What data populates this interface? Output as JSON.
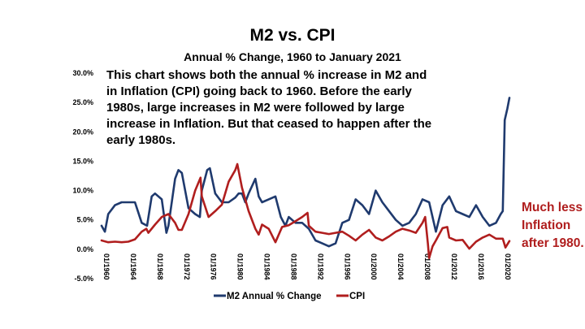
{
  "chart_data": {
    "type": "line",
    "title": "M2 vs. CPI",
    "subtitle": "Annual % Change, 1960 to January 2021",
    "annotation": "This chart shows both the annual % increase in M2 and in Inflation (CPI) going back to 1960.  Before the early 1980s, large increases in M2 were followed by large increase in Inflation.  But that ceased to happen after the early 1980s.",
    "side_note": "Much less Inflation after 1980.",
    "ylim": [
      -5,
      30
    ],
    "xlim": [
      1960,
      2021
    ],
    "y_ticks": [
      30,
      25,
      20,
      15,
      10,
      5,
      0,
      -5
    ],
    "y_tick_labels": [
      "30.0%",
      "25.0%",
      "20.0%",
      "15.0%",
      "10.0%",
      "5.0%",
      "0.0%",
      "-5.0%"
    ],
    "x_ticks": [
      1960,
      1964,
      1968,
      1972,
      1976,
      1980,
      1984,
      1988,
      1992,
      1996,
      2000,
      2004,
      2008,
      2012,
      2016,
      2020
    ],
    "x_tick_labels": [
      "01/1960",
      "01/1964",
      "01/1968",
      "01/1972",
      "01/1976",
      "01/1980",
      "01/1984",
      "01/1988",
      "01/1992",
      "01/1996",
      "01/2000",
      "01/2004",
      "01/2008",
      "01/2012",
      "01/2016",
      "01/2020"
    ],
    "grid": false,
    "legend_position": "bottom",
    "series": [
      {
        "name": "M2 Annual % Change",
        "color": "#1f3a6e",
        "x": [
          1960,
          1960.5,
          1961,
          1962,
          1963,
          1964,
          1965,
          1966,
          1966.8,
          1967.5,
          1968,
          1969,
          1969.7,
          1970,
          1971,
          1971.5,
          1972,
          1973,
          1974,
          1974.7,
          1975,
          1975.8,
          1976.2,
          1977,
          1978,
          1979,
          1980,
          1980.5,
          1981,
          1981.5,
          1982,
          1983,
          1983.5,
          1984,
          1985,
          1986,
          1986.8,
          1987.5,
          1988,
          1989,
          1990,
          1991,
          1992,
          1993,
          1994,
          1995,
          1996,
          1997,
          1998,
          1999,
          2000,
          2001,
          2002,
          2003,
          2004,
          2005,
          2006,
          2007,
          2008,
          2009,
          2010,
          2011,
          2012,
          2013,
          2014,
          2015,
          2016,
          2017,
          2018,
          2019,
          2019.7,
          2020,
          2020.3,
          2020.7,
          2021
        ],
        "values": [
          4.0,
          3.0,
          6.0,
          7.5,
          8.0,
          8.0,
          8.0,
          4.5,
          4.0,
          9.0,
          9.5,
          8.5,
          2.8,
          4.0,
          12.0,
          13.5,
          13.0,
          7.0,
          6.0,
          5.5,
          10.0,
          13.5,
          13.8,
          9.5,
          8.0,
          8.0,
          8.8,
          9.5,
          9.5,
          8.0,
          9.5,
          12.0,
          9.0,
          8.0,
          8.5,
          9.0,
          5.5,
          4.0,
          5.5,
          4.5,
          4.5,
          3.5,
          1.5,
          1.0,
          0.5,
          1.0,
          4.5,
          5.0,
          8.5,
          7.5,
          6.0,
          10.0,
          8.0,
          6.5,
          5.0,
          4.0,
          4.5,
          6.0,
          8.5,
          8.0,
          3.0,
          7.5,
          9.0,
          6.5,
          6.0,
          5.5,
          7.5,
          5.5,
          4.0,
          4.5,
          6.0,
          6.5,
          22.0,
          24.0,
          25.8
        ]
      },
      {
        "name": "CPI",
        "color": "#b01e1e",
        "x": [
          1960,
          1961,
          1962,
          1963,
          1964,
          1965,
          1966,
          1966.7,
          1967,
          1968,
          1969,
          1970,
          1971,
          1971.5,
          1972,
          1973,
          1974,
          1974.8,
          1975,
          1976,
          1977,
          1978,
          1979,
          1980,
          1980.3,
          1981,
          1982,
          1983,
          1983.5,
          1984,
          1985,
          1986,
          1987,
          1988,
          1989,
          1990,
          1990.8,
          1991,
          1992,
          1993,
          1994,
          1995,
          1996,
          1997,
          1998,
          1999,
          2000,
          2001,
          2002,
          2003,
          2004,
          2005,
          2006,
          2007,
          2008,
          2008.4,
          2008.8,
          2009,
          2009.5,
          2010,
          2011,
          2011.7,
          2012,
          2013,
          2014,
          2015,
          2016,
          2017,
          2018,
          2019,
          2020,
          2020.4,
          2021
        ],
        "values": [
          1.5,
          1.2,
          1.3,
          1.2,
          1.3,
          1.7,
          3.0,
          3.5,
          2.8,
          4.2,
          5.5,
          6.0,
          4.5,
          3.3,
          3.3,
          6.0,
          10.0,
          12.2,
          9.0,
          5.5,
          6.5,
          7.6,
          11.5,
          13.5,
          14.5,
          10.5,
          6.5,
          3.5,
          2.5,
          4.2,
          3.5,
          1.2,
          3.8,
          4.1,
          4.8,
          5.5,
          6.2,
          4.0,
          3.0,
          2.8,
          2.6,
          2.8,
          3.0,
          2.3,
          1.5,
          2.5,
          3.3,
          2.0,
          1.5,
          2.2,
          3.0,
          3.5,
          3.2,
          2.8,
          4.5,
          5.5,
          1.0,
          -1.5,
          0.5,
          1.5,
          3.6,
          3.8,
          2.0,
          1.5,
          1.6,
          0.1,
          1.3,
          2.0,
          2.5,
          1.8,
          1.8,
          0.3,
          1.4
        ]
      }
    ]
  }
}
